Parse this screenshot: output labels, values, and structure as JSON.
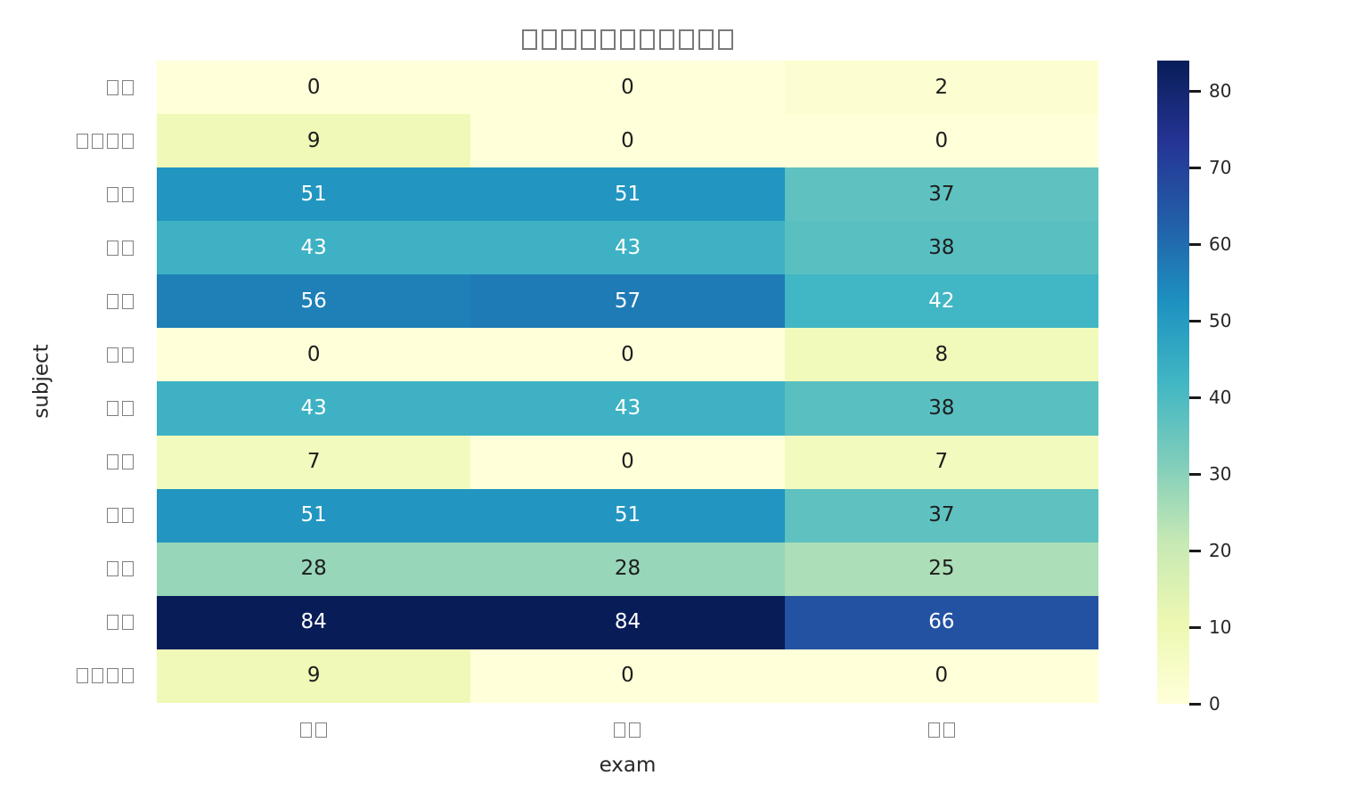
{
  "chart_data": {
    "type": "heatmap",
    "title": "□□□□□□□□□□□",
    "xlabel": "exam",
    "ylabel": "subject",
    "columns": [
      "□□",
      "□□",
      "□□"
    ],
    "rows": [
      "□□",
      "□□□□",
      "□□",
      "□□",
      "□□",
      "□□",
      "□□",
      "□□",
      "□□",
      "□□",
      "□□",
      "□□□□"
    ],
    "values": [
      [
        0,
        0,
        2
      ],
      [
        9,
        0,
        0
      ],
      [
        51,
        51,
        37
      ],
      [
        43,
        43,
        38
      ],
      [
        56,
        57,
        42
      ],
      [
        0,
        0,
        8
      ],
      [
        43,
        43,
        38
      ],
      [
        7,
        0,
        7
      ],
      [
        51,
        51,
        37
      ],
      [
        28,
        28,
        25
      ],
      [
        84,
        84,
        66
      ],
      [
        9,
        0,
        0
      ]
    ],
    "vmin": 0,
    "vmax": 84,
    "annotated": true,
    "grid": false,
    "colormap": {
      "name": "YlGnBu",
      "stops": [
        "#ffffd9",
        "#edf8b1",
        "#c7e9b4",
        "#7fcdbb",
        "#41b6c4",
        "#1d91c0",
        "#225ea8",
        "#253494",
        "#081d58"
      ]
    },
    "colorbar": {
      "position": "right",
      "ticks": [
        0,
        10,
        20,
        30,
        40,
        50,
        60,
        70,
        80
      ]
    },
    "colors": {
      "annotation_dark": "#1d1d1d",
      "annotation_light": "#ffffff",
      "tofu_stroke": "#7f7f7f",
      "axis_text": "#262626",
      "background": "#ffffff"
    }
  }
}
